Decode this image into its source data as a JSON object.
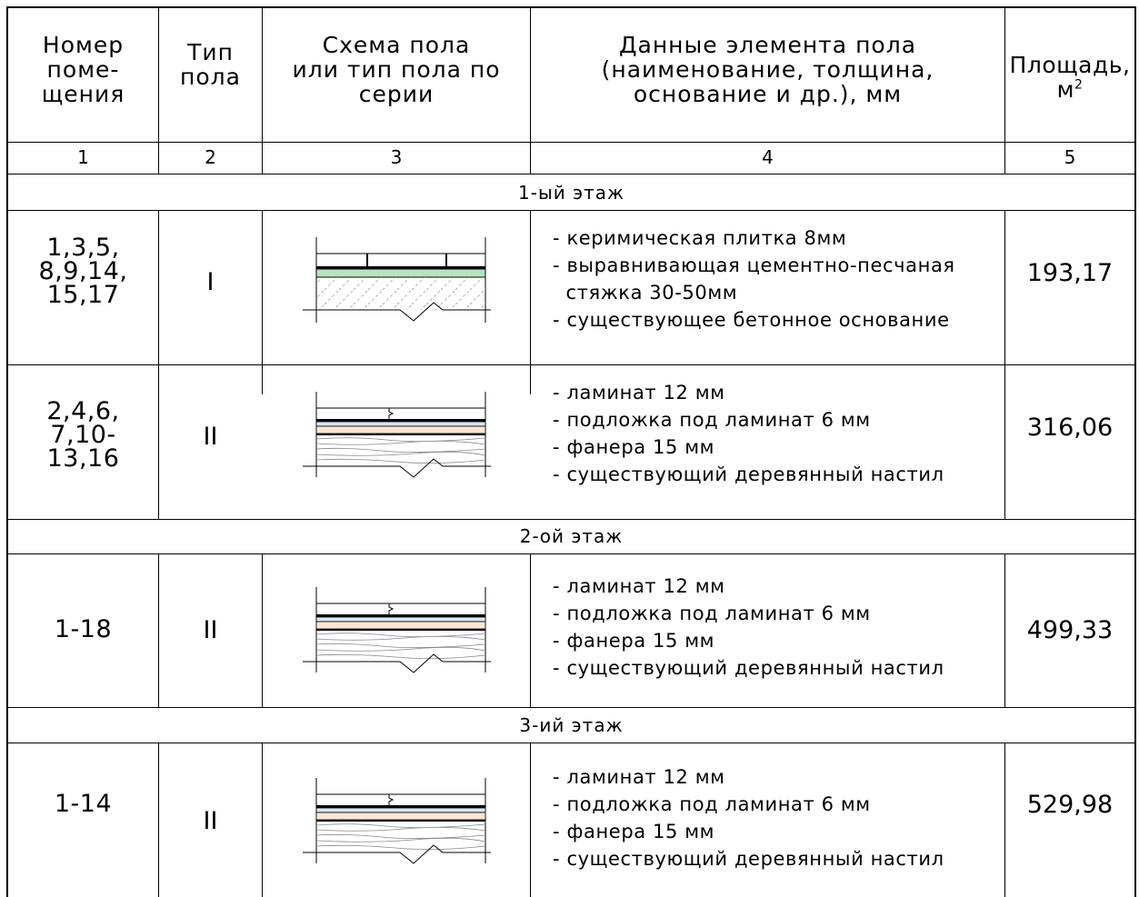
{
  "header": {
    "col1": [
      "Номер",
      "поме-",
      "щения"
    ],
    "col2": [
      "Тип",
      "пола"
    ],
    "col3": [
      "Схема пола",
      "или тип пола по",
      "серии"
    ],
    "col4": [
      "Данные элемента пола",
      "(наименование, толщина,",
      "основание и др.), мм"
    ],
    "col5": "Площадь,",
    "col5_unit": "м",
    "col5_sup": "2"
  },
  "numbers": [
    "1",
    "2",
    "3",
    "4",
    "5"
  ],
  "floors": [
    "1-ый этаж",
    "2-ой этаж",
    "3-ий этаж"
  ],
  "rows": [
    {
      "rooms": [
        "1,3,5,",
        "8,9,14,",
        "15,17"
      ],
      "type": "I",
      "items": [
        "- керимическая плитка 8мм",
        "- выравнивающая цементно-песчаная",
        "  стяжка 30-50мм",
        "- существующее бетонное основание"
      ],
      "area": "193,17"
    },
    {
      "rooms": [
        "2,4,6,",
        "7,10-",
        "13,16"
      ],
      "type": "II",
      "items": [
        "- ламинат 12 мм",
        "- подложка под ламинат 6 мм",
        "- фанера 15 мм",
        "- существующий деревянный настил"
      ],
      "area": "316,06"
    },
    {
      "rooms": [
        "1-18"
      ],
      "type": "II",
      "items": [
        "- ламинат 12 мм",
        "- подложка под ламинат 6 мм",
        "- фанера 15 мм",
        "- существующий деревянный настил"
      ],
      "area": "499,33"
    },
    {
      "rooms": [
        "1-14"
      ],
      "type": "II",
      "items": [
        "- ламинат 12 мм",
        "- подложка под ламинат 6 мм",
        "- фанера 15 мм",
        "- существующий деревянный настил"
      ],
      "area": "529,98"
    }
  ],
  "colors": {
    "lines": "#000000",
    "tile_bed": "#b9e3c0",
    "underlay": "#d8e6f6",
    "plywood": "#fbe6d2"
  }
}
